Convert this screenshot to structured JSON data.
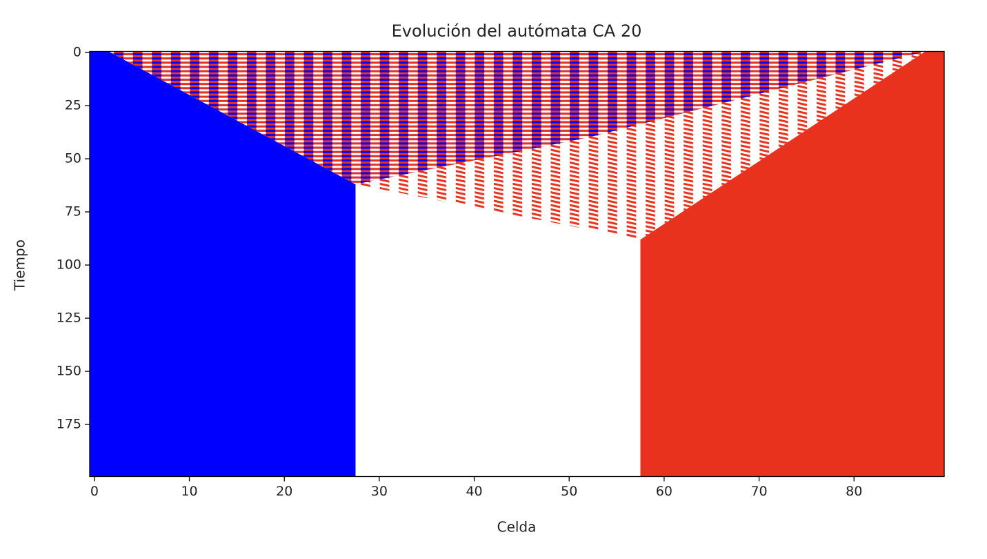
{
  "chart_data": {
    "type": "heatmap",
    "title": "Evolución del autómata CA 20",
    "x_label": "Celda",
    "y_label": "Tiempo",
    "xlim": [
      -0.5,
      89.5
    ],
    "ylim": [
      199.5,
      -0.5
    ],
    "xticks": [
      0,
      10,
      20,
      30,
      40,
      50,
      60,
      70,
      80
    ],
    "yticks": [
      0,
      25,
      50,
      75,
      100,
      125,
      150,
      175
    ],
    "regions": [
      {
        "colors": [
          "#0000ff"
        ],
        "x": [
          -0.5,
          1.5,
          27.5,
          27.5,
          -0.5
        ],
        "y": [
          -0.5,
          -0.5,
          62,
          199.5,
          199.5
        ]
      },
      {
        "colors": [
          "#e8321e"
        ],
        "x": [
          89.5,
          87.5,
          57.5,
          57.5,
          89.5
        ],
        "y": [
          -0.5,
          -0.5,
          88,
          199.5,
          199.5
        ]
      },
      {
        "colors": [
          "#e8321e",
          "#ffffff"
        ],
        "x": [
          1.5,
          87.5,
          57.5,
          27.5
        ],
        "y": [
          -0.5,
          -0.5,
          88,
          62
        ]
      },
      {
        "colors": [
          "#e8321e",
          "#0000ff"
        ],
        "x": [
          1.5,
          87.5,
          52,
          27.5
        ],
        "y": [
          -0.5,
          -0.5,
          40,
          62
        ]
      }
    ]
  }
}
